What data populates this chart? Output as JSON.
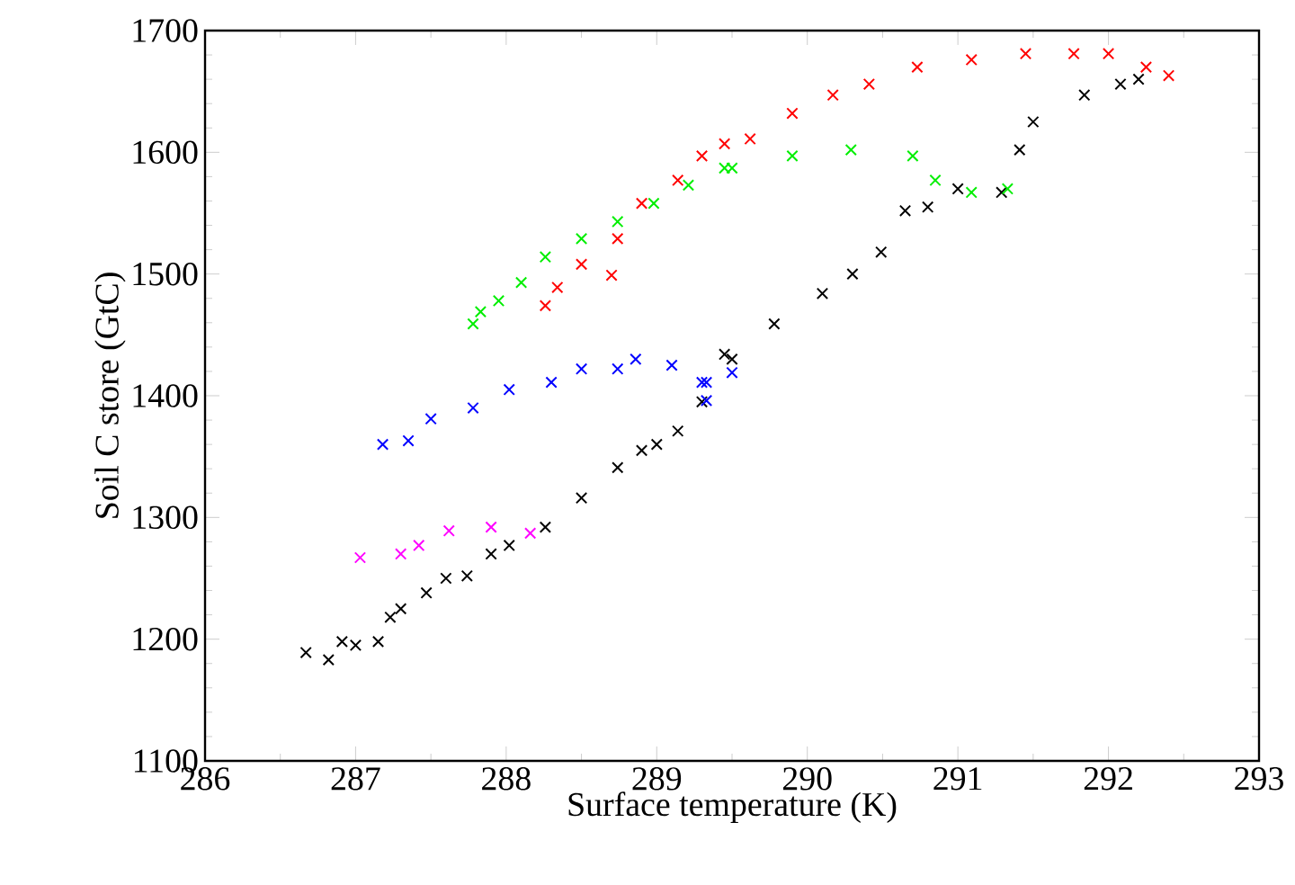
{
  "chart_data": {
    "type": "scatter",
    "xlabel": "Surface temperature (K)",
    "ylabel": "Soil C store (GtC)",
    "xlim": [
      286,
      293
    ],
    "ylim": [
      1100,
      1700
    ],
    "xticks": [
      286,
      287,
      288,
      289,
      290,
      291,
      292,
      293
    ],
    "yticks": [
      1100,
      1200,
      1300,
      1400,
      1500,
      1600,
      1700
    ],
    "marker": "cross",
    "grid": false,
    "series": [
      {
        "color": "#000000",
        "x": [
          286.67,
          286.82,
          286.91,
          287.0,
          287.15,
          287.23,
          287.3,
          287.47,
          287.6,
          287.74,
          287.9,
          288.02,
          288.26,
          288.5,
          288.74,
          288.9,
          289.0,
          289.14,
          289.3,
          289.45,
          289.5,
          289.78,
          290.1,
          290.3,
          290.49,
          290.65,
          290.8,
          291.0,
          291.29,
          291.41,
          291.5,
          291.84,
          292.08,
          292.2
        ],
        "values": [
          1189,
          1183,
          1198,
          1195,
          1198,
          1218,
          1225,
          1238,
          1250,
          1252,
          1270,
          1277,
          1292,
          1316,
          1341,
          1355,
          1360,
          1371,
          1395,
          1434,
          1430,
          1459,
          1484,
          1500,
          1518,
          1552,
          1555,
          1570,
          1567,
          1602,
          1625,
          1647,
          1656,
          1660
        ]
      },
      {
        "color": "#ff0000",
        "x": [
          288.26,
          288.34,
          288.5,
          288.7,
          288.74,
          288.9,
          289.14,
          289.3,
          289.45,
          289.62,
          289.9,
          290.17,
          290.41,
          290.73,
          291.09,
          291.45,
          291.77,
          292.0,
          292.25,
          292.4
        ],
        "values": [
          1474,
          1489,
          1508,
          1499,
          1529,
          1558,
          1577,
          1597,
          1607,
          1611,
          1632,
          1647,
          1656,
          1670,
          1676,
          1681,
          1681,
          1681,
          1670,
          1663
        ]
      },
      {
        "color": "#00ee00",
        "x": [
          287.78,
          287.83,
          287.95,
          288.1,
          288.26,
          288.5,
          288.74,
          288.98,
          289.21,
          289.45,
          289.5,
          289.9,
          290.29,
          290.7,
          290.85,
          291.09,
          291.33
        ],
        "values": [
          1459,
          1469,
          1478,
          1493,
          1514,
          1529,
          1543,
          1558,
          1573,
          1587,
          1587,
          1597,
          1602,
          1597,
          1577,
          1567,
          1570
        ]
      },
      {
        "color": "#0000ff",
        "x": [
          287.18,
          287.35,
          287.5,
          287.78,
          288.02,
          288.3,
          288.5,
          288.74,
          288.86,
          289.1,
          289.3,
          289.33,
          289.33,
          289.5
        ],
        "values": [
          1360,
          1363,
          1381,
          1390,
          1405,
          1411,
          1422,
          1422,
          1430,
          1425,
          1411,
          1396,
          1411,
          1419
        ]
      },
      {
        "color": "#ff00ff",
        "x": [
          287.03,
          287.3,
          287.42,
          287.62,
          287.9,
          288.16
        ],
        "values": [
          1267,
          1270,
          1277,
          1289,
          1292,
          1287
        ]
      }
    ]
  }
}
